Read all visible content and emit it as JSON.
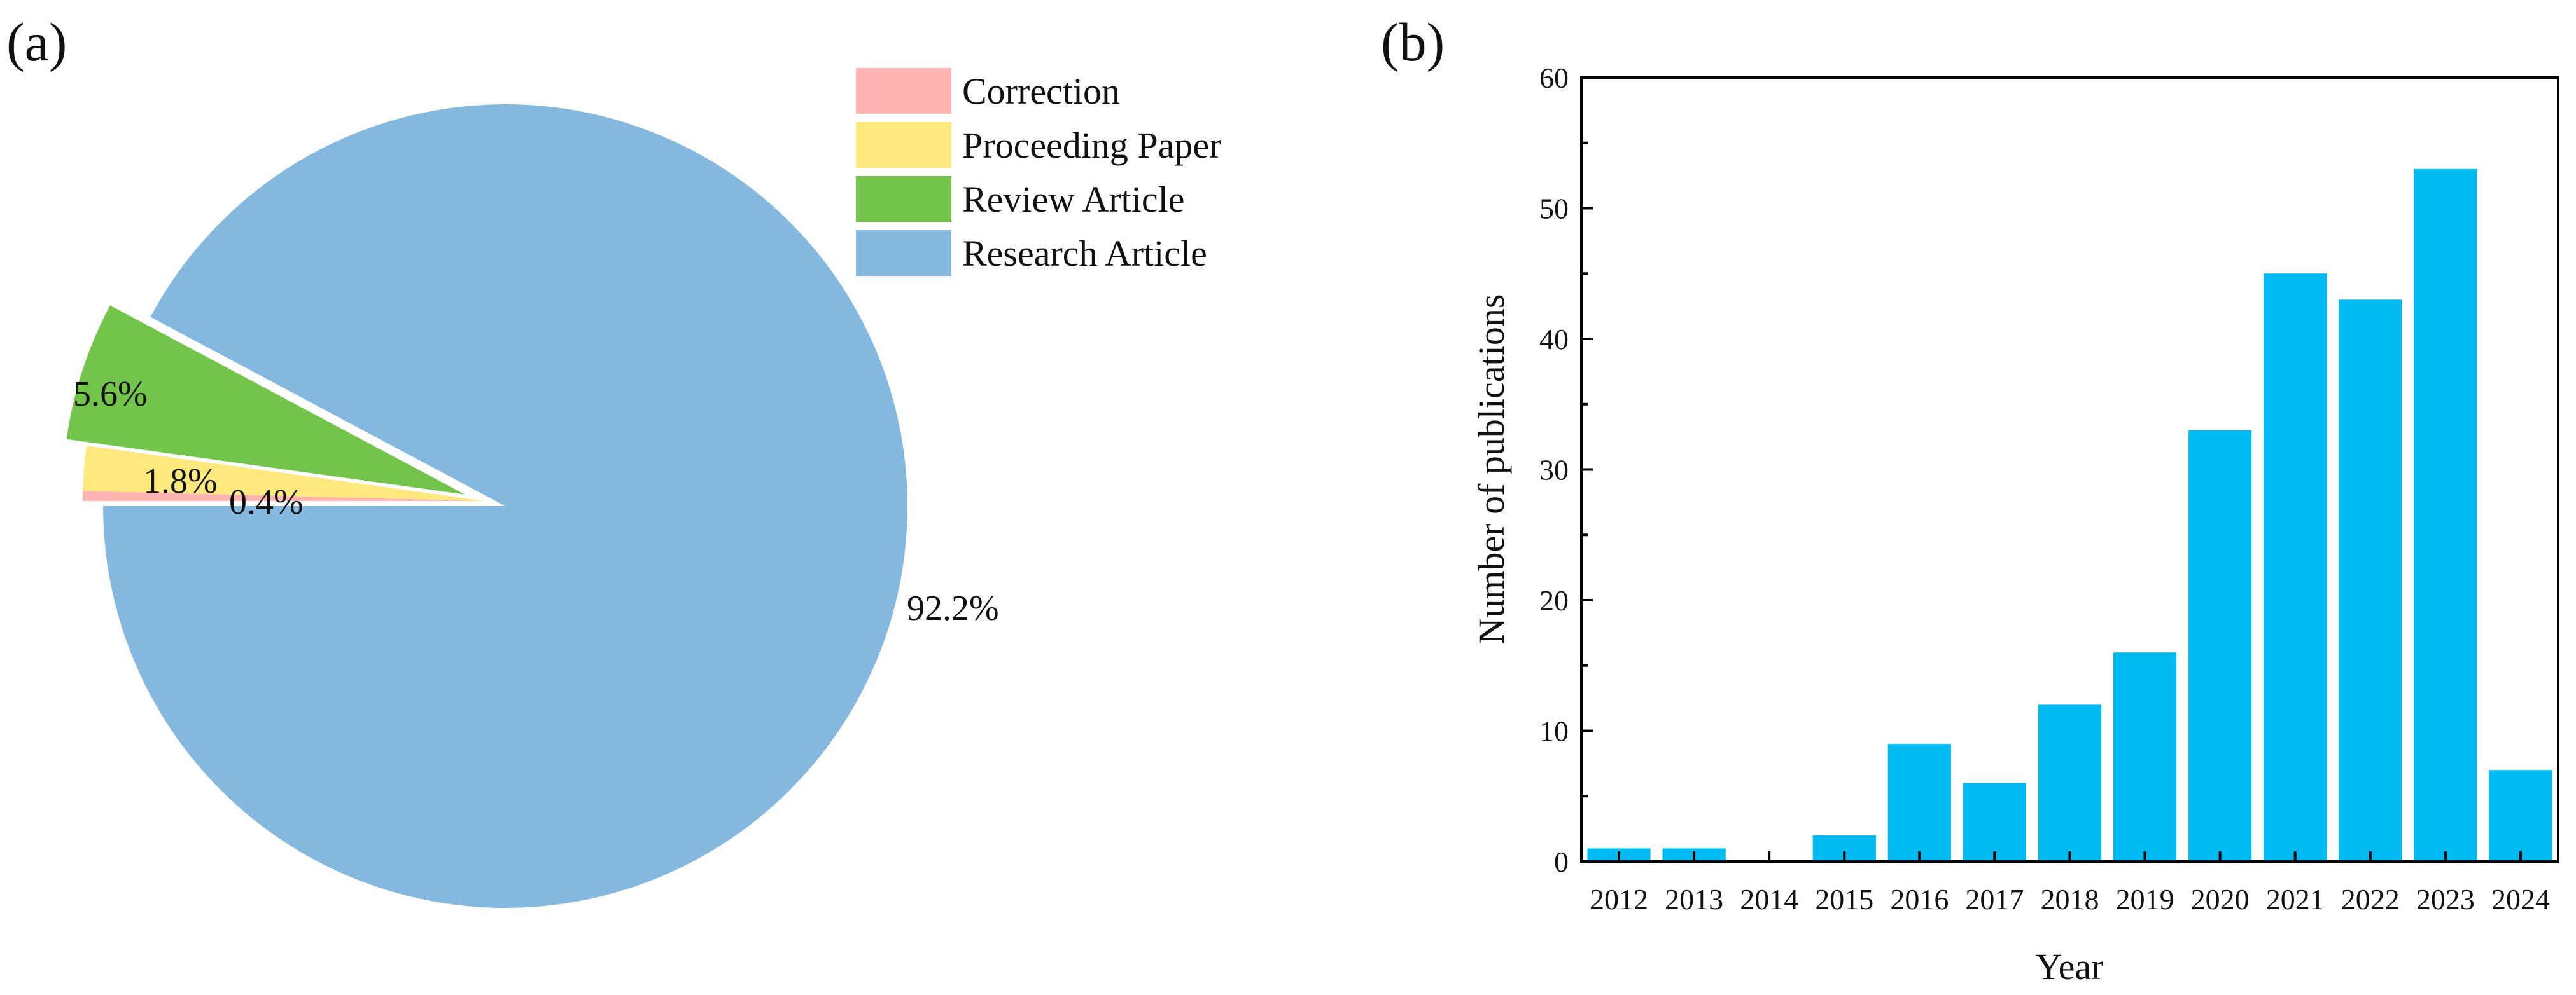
{
  "panels": {
    "a_label": "(a)",
    "b_label": "(b)"
  },
  "chart_data": [
    {
      "type": "pie",
      "panel": "(a)",
      "legend_position": "top-right",
      "slices": [
        {
          "label": "Correction",
          "value": 0.4,
          "display": "0.4%",
          "color": "#FFB3B3",
          "exploded": false
        },
        {
          "label": "Proceeding Paper",
          "value": 1.8,
          "display": "1.8%",
          "color": "#FFE97F",
          "exploded": false
        },
        {
          "label": "Review Article",
          "value": 5.6,
          "display": "5.6%",
          "color": "#72C54A",
          "exploded": true
        },
        {
          "label": "Research Article",
          "value": 92.2,
          "display": "92.2%",
          "color": "#84B8DF",
          "exploded": true
        }
      ]
    },
    {
      "type": "bar",
      "panel": "(b)",
      "categories": [
        "2012",
        "2013",
        "2014",
        "2015",
        "2016",
        "2017",
        "2018",
        "2019",
        "2020",
        "2021",
        "2022",
        "2023",
        "2024"
      ],
      "values": [
        1,
        1,
        0,
        2,
        9,
        6,
        12,
        16,
        33,
        45,
        43,
        53,
        7
      ],
      "bar_color": "#00BBF2",
      "xlabel": "Year",
      "ylabel": "Number of publications",
      "ylim": [
        0,
        60
      ],
      "yticks": [
        0,
        10,
        20,
        30,
        40,
        50,
        60
      ],
      "grid": false
    }
  ]
}
